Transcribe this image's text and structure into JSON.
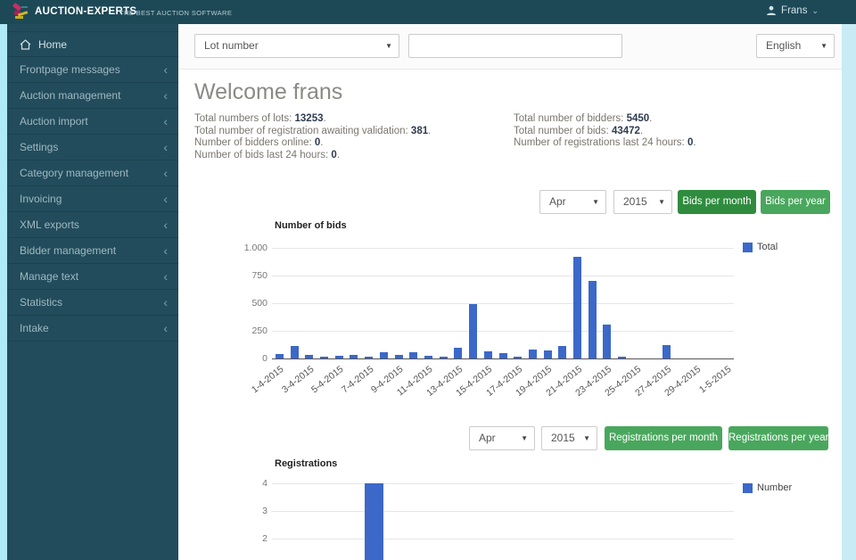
{
  "navbar": {
    "brand": "AUCTION-EXPERTS",
    "tagline": "THE BEST AUCTION SOFTWARE",
    "user": "Frans"
  },
  "topbar": {
    "search_type": "Lot number",
    "search_value": "",
    "search_placeholder": "",
    "language": "English"
  },
  "sidebar": {
    "items": [
      {
        "label": "Home",
        "has_submenu": false
      },
      {
        "label": "Frontpage messages",
        "has_submenu": true
      },
      {
        "label": "Auction management",
        "has_submenu": true
      },
      {
        "label": "Auction import",
        "has_submenu": true
      },
      {
        "label": "Settings",
        "has_submenu": true
      },
      {
        "label": "Category management",
        "has_submenu": true
      },
      {
        "label": "Invoicing",
        "has_submenu": true
      },
      {
        "label": "XML exports",
        "has_submenu": true
      },
      {
        "label": "Bidder management",
        "has_submenu": true
      },
      {
        "label": "Manage text",
        "has_submenu": true
      },
      {
        "label": "Statistics",
        "has_submenu": true
      },
      {
        "label": "Intake",
        "has_submenu": true
      }
    ]
  },
  "welcome": {
    "title": "Welcome frans",
    "stats_left": [
      {
        "label": "Total numbers of lots:",
        "value": "13253"
      },
      {
        "label": "Total number of registration awaiting validation:",
        "value": "381"
      },
      {
        "label": "Number of bidders online:",
        "value": "0"
      },
      {
        "label": "Number of bids last 24 hours:",
        "value": "0"
      }
    ],
    "stats_right": [
      {
        "label": "Total number of bidders:",
        "value": "5450"
      },
      {
        "label": "Total number of bids:",
        "value": "43472"
      },
      {
        "label": "Number of registrations last 24 hours:",
        "value": "0"
      }
    ]
  },
  "bids_controls": {
    "month": "Apr",
    "year": "2015",
    "button_month": "Bids per month",
    "button_year": "Bids per year"
  },
  "registrations_controls": {
    "month": "Apr",
    "year": "2015",
    "button_month": "Registrations per month",
    "button_year": "Registrations per year"
  },
  "chart_data": [
    {
      "type": "bar",
      "title": "Number of bids",
      "legend": [
        {
          "name": "Total",
          "color": "#3b68c9"
        }
      ],
      "legend_position": "right",
      "grid": true,
      "ylim": [
        0,
        1000
      ],
      "ytick_values": [
        0,
        250,
        500,
        750,
        1000
      ],
      "ytick_labels": [
        "0",
        "250",
        "500",
        "750",
        "1.000"
      ],
      "x_labels_shown_every": 2,
      "categories": [
        "1-4-2015",
        "2-4-2015",
        "3-4-2015",
        "4-4-2015",
        "5-4-2015",
        "6-4-2015",
        "7-4-2015",
        "8-4-2015",
        "9-4-2015",
        "10-4-2015",
        "11-4-2015",
        "12-4-2015",
        "13-4-2015",
        "14-4-2015",
        "15-4-2015",
        "16-4-2015",
        "17-4-2015",
        "18-4-2015",
        "19-4-2015",
        "20-4-2015",
        "21-4-2015",
        "22-4-2015",
        "23-4-2015",
        "24-4-2015",
        "25-4-2015",
        "26-4-2015",
        "27-4-2015",
        "28-4-2015",
        "29-4-2015",
        "30-4-2015",
        "1-5-2015"
      ],
      "series": [
        {
          "name": "Total",
          "values": [
            40,
            110,
            35,
            15,
            25,
            35,
            15,
            60,
            35,
            60,
            25,
            20,
            95,
            490,
            65,
            45,
            20,
            80,
            70,
            115,
            920,
            700,
            310,
            15,
            0,
            0,
            120,
            0,
            0,
            0,
            0
          ]
        }
      ]
    },
    {
      "type": "bar",
      "title": "Registrations",
      "legend": [
        {
          "name": "Number",
          "color": "#3b68c9"
        }
      ],
      "legend_position": "right",
      "grid": true,
      "ylim": [
        0,
        4
      ],
      "ytick_values_visible": [
        4,
        3,
        2
      ],
      "ytick_labels_visible": [
        "4",
        "3",
        "2"
      ],
      "clipped_at_viewport_bottom": true,
      "visible_bars": [
        {
          "value": 4,
          "x_frac": 0.221
        }
      ],
      "series": [
        {
          "name": "Number",
          "values_visible": [
            4
          ]
        }
      ]
    }
  ],
  "colors": {
    "navbar_bg": "#1d4956",
    "sidebar_bg": "#224c5b",
    "accent_strip": "#b0e9f8",
    "page_bg": "#c8ebf6",
    "green_button_active": "#2f8c3e",
    "green_button": "#49a75d",
    "bar_blue": "#3b68c9"
  }
}
